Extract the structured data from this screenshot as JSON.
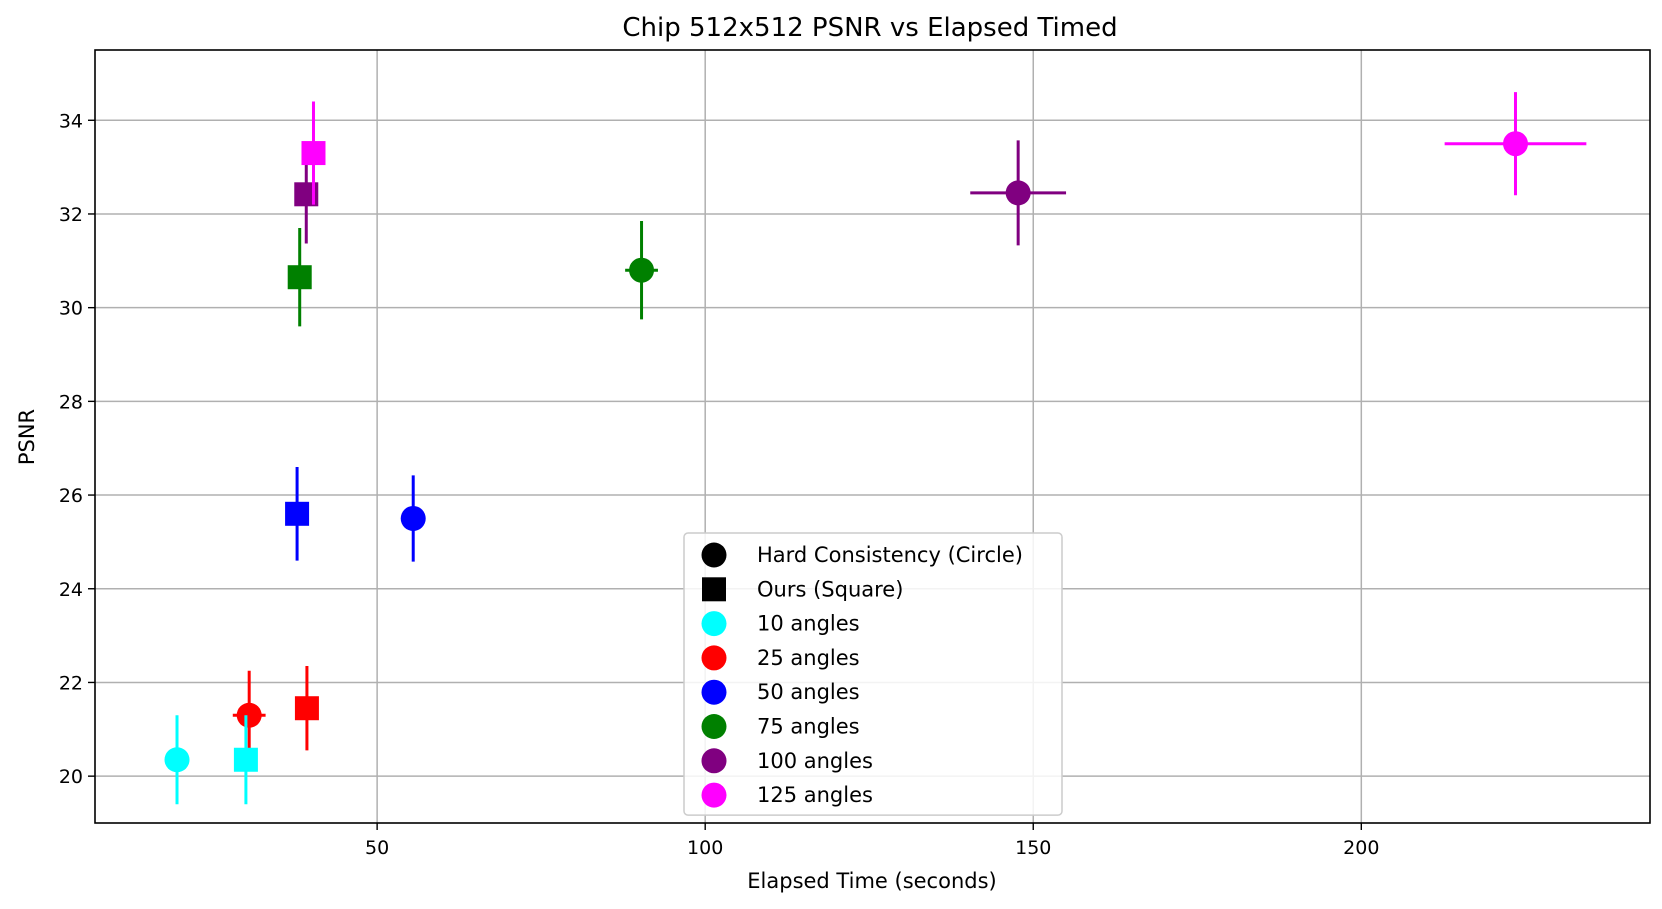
{
  "chart_data": {
    "type": "scatter",
    "title": "Chip 512x512 PSNR vs Elapsed Timed",
    "xlabel": "Elapsed Time (seconds)",
    "ylabel": "PSNR",
    "xlim": [
      7,
      244
    ],
    "ylim": [
      19.0,
      35.5
    ],
    "x_ticks": [
      50,
      100,
      150,
      200
    ],
    "y_ticks": [
      20,
      22,
      24,
      26,
      28,
      30,
      32,
      34
    ],
    "grid": true,
    "legend": {
      "placement": "lower-center",
      "entries": [
        {
          "label": "Hard Consistency (Circle)",
          "marker": "circle",
          "color": "#000000"
        },
        {
          "label": "Ours (Square)",
          "marker": "square",
          "color": "#000000"
        },
        {
          "label": "10 angles",
          "marker": "circle",
          "color": "#00ffff"
        },
        {
          "label": "25 angles",
          "marker": "circle",
          "color": "#ff0000"
        },
        {
          "label": "50 angles",
          "marker": "circle",
          "color": "#0000ff"
        },
        {
          "label": "75 angles",
          "marker": "circle",
          "color": "#008000"
        },
        {
          "label": "100 angles",
          "marker": "circle",
          "color": "#800080"
        },
        {
          "label": "125 angles",
          "marker": "circle",
          "color": "#ff00ff"
        }
      ]
    },
    "points": [
      {
        "method": "hard",
        "marker": "circle",
        "color": "#00ffff",
        "x": 19.5,
        "y": 20.35,
        "xerr": 0.5,
        "yerr": 0.95
      },
      {
        "method": "hard",
        "marker": "circle",
        "color": "#ff0000",
        "x": 30.5,
        "y": 21.3,
        "xerr": 2.5,
        "yerr": 0.95
      },
      {
        "method": "hard",
        "marker": "circle",
        "color": "#0000ff",
        "x": 55.5,
        "y": 25.5,
        "xerr": 0.5,
        "yerr": 0.92
      },
      {
        "method": "hard",
        "marker": "circle",
        "color": "#008000",
        "x": 90.3,
        "y": 30.8,
        "xerr": 2.5,
        "yerr": 1.05
      },
      {
        "method": "hard",
        "marker": "circle",
        "color": "#800080",
        "x": 147.7,
        "y": 32.45,
        "xerr": 7.3,
        "yerr": 1.12
      },
      {
        "method": "hard",
        "marker": "circle",
        "color": "#ff00ff",
        "x": 223.5,
        "y": 33.5,
        "xerr": 10.8,
        "yerr": 1.1
      },
      {
        "method": "ours",
        "marker": "square",
        "color": "#00ffff",
        "x": 30.0,
        "y": 20.35,
        "xerr": 0.5,
        "yerr": 0.95
      },
      {
        "method": "ours",
        "marker": "square",
        "color": "#ff0000",
        "x": 39.3,
        "y": 21.45,
        "xerr": 0.3,
        "yerr": 0.9
      },
      {
        "method": "ours",
        "marker": "square",
        "color": "#0000ff",
        "x": 37.8,
        "y": 25.6,
        "xerr": 0.3,
        "yerr": 1.0
      },
      {
        "method": "ours",
        "marker": "square",
        "color": "#008000",
        "x": 38.2,
        "y": 30.65,
        "xerr": 0.3,
        "yerr": 1.05
      },
      {
        "method": "ours",
        "marker": "square",
        "color": "#800080",
        "x": 39.2,
        "y": 32.42,
        "xerr": 0.3,
        "yerr": 1.05
      },
      {
        "method": "ours",
        "marker": "square",
        "color": "#ff00ff",
        "x": 40.3,
        "y": 33.3,
        "xerr": 0.3,
        "yerr": 1.1
      }
    ]
  }
}
